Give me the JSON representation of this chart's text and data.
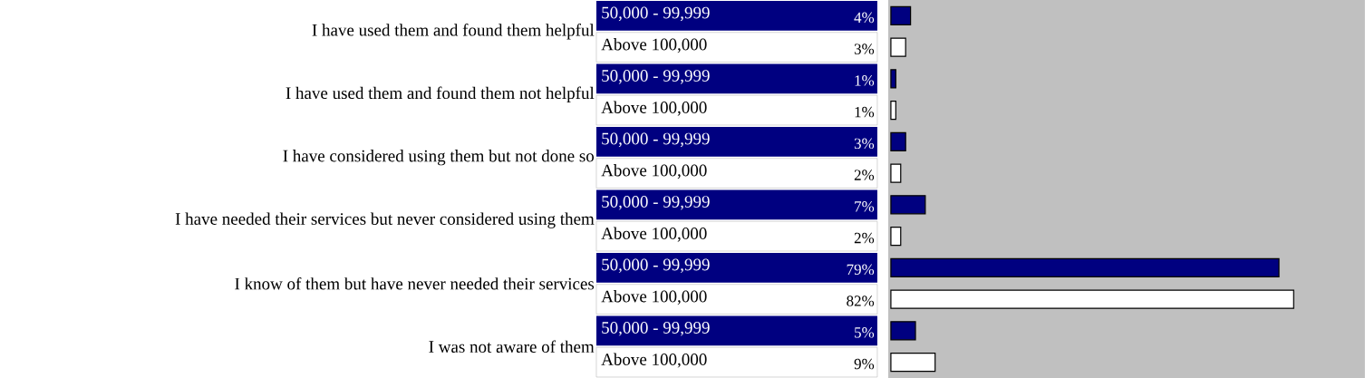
{
  "chart_data": {
    "type": "bar",
    "orientation": "horizontal",
    "categories": [
      "I have used them and found them helpful",
      "I have used them and found them not helpful",
      "I have considered using them but not done so",
      "I have needed their services but never considered using them",
      "I know of them but have never needed their services",
      "I was not aware of them"
    ],
    "series": [
      {
        "name": "50,000 - 99,999",
        "color": "#000080",
        "values": [
          4,
          1,
          3,
          7,
          79,
          5
        ],
        "value_labels": [
          "4%",
          "1%",
          "3%",
          "7%",
          "79%",
          "5%"
        ]
      },
      {
        "name": "Above 100,000",
        "color": "#ffffff",
        "values": [
          3,
          1,
          2,
          2,
          82,
          9
        ],
        "value_labels": [
          "3%",
          "1%",
          "2%",
          "2%",
          "82%",
          "9%"
        ]
      }
    ],
    "xlim": [
      0,
      96.5
    ],
    "tick_labels": "y"
  }
}
